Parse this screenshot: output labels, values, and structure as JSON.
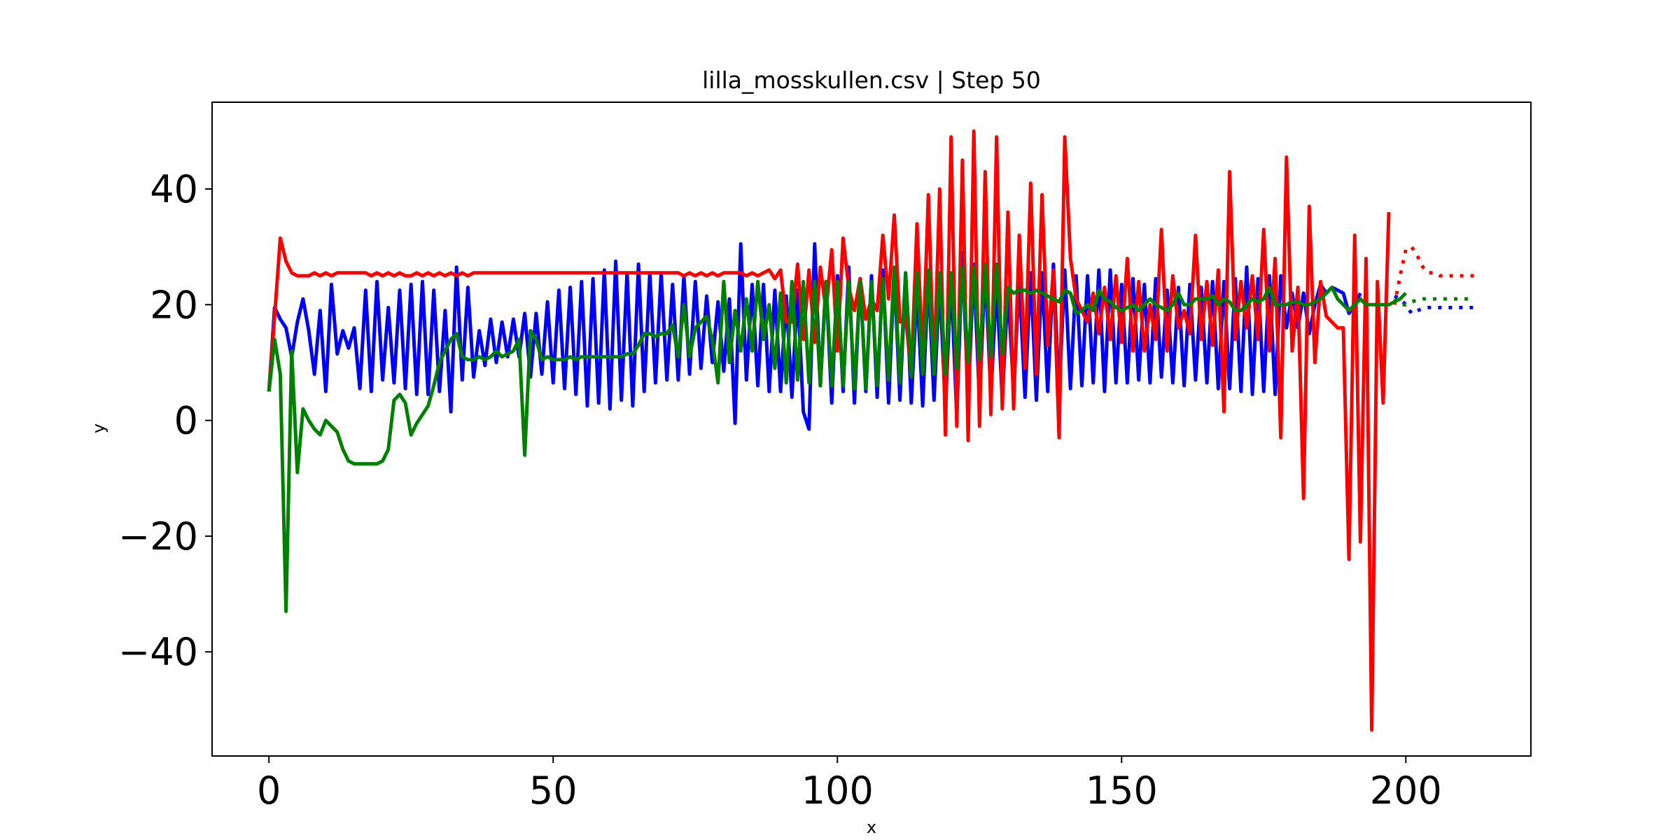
{
  "chart_data": {
    "type": "line",
    "title": "lilla_mosskullen.csv | Step 50",
    "xlabel": "x",
    "ylabel": "y",
    "xlim": [
      -10,
      222
    ],
    "ylim": [
      -58,
      55
    ],
    "xticks": [
      0,
      50,
      100,
      150,
      200
    ],
    "yticks": [
      -40,
      -20,
      0,
      20,
      40
    ],
    "xtick_labels": [
      "0",
      "50",
      "100",
      "150",
      "200"
    ],
    "ytick_labels": [
      "−40",
      "−20",
      "0",
      "20",
      "40"
    ],
    "legend": "none",
    "grid": false,
    "colors": {
      "blue": "#0000ff",
      "red": "#ff0000",
      "green": "#008000"
    },
    "series": [
      {
        "color": "blue",
        "x_start": 0,
        "values": [
          5,
          19.5,
          17.5,
          16,
          11,
          17,
          21,
          15.5,
          8,
          19,
          5,
          23.5,
          11.5,
          15.5,
          12.5,
          16,
          5.5,
          22.5,
          5,
          24,
          7,
          19.5,
          6.5,
          22.5,
          5.5,
          23.5,
          4.5,
          24,
          4.5,
          22.5,
          5,
          19,
          1.5,
          26.5,
          7,
          23,
          7.5,
          15.5,
          9.5,
          17.5,
          10,
          17,
          11,
          17.5,
          11,
          18.5,
          7.5,
          18.5,
          8,
          20.5,
          6.5,
          22.5,
          5.5,
          23,
          4.5,
          24,
          2.5,
          24.5,
          3,
          26,
          2,
          27.5,
          3.5,
          25.5,
          2.5,
          27,
          5,
          25.5,
          6.5,
          25.5,
          7,
          23.5,
          7,
          25,
          8,
          24,
          9,
          21.5,
          10,
          20.5,
          8.5,
          21,
          -0.5,
          30.5,
          7,
          23.5,
          6,
          23.5,
          5,
          22.5,
          5,
          21.5,
          4,
          22.5,
          1.5,
          -1.5,
          30.5,
          6,
          24,
          3,
          25,
          5,
          26.5,
          3,
          24.5,
          5,
          25,
          4,
          26,
          3,
          26,
          3.5,
          25.5,
          3,
          23,
          2.5,
          25,
          3.5,
          24,
          2,
          25,
          0.5,
          29,
          3.5,
          27,
          3,
          27,
          4,
          24,
          3.5,
          23,
          5,
          24.5,
          4,
          25.5,
          3.5,
          25.5,
          5,
          27,
          4.5,
          26,
          5.5,
          25,
          6,
          25,
          6.5,
          26,
          5,
          26,
          6.5,
          23.5,
          6.5,
          24.5,
          7,
          23.5,
          6.5,
          24.5,
          7.5,
          22.5,
          6.5,
          23,
          6,
          23.5,
          7,
          23,
          6.5,
          24,
          5.5,
          24,
          5.5,
          24.5,
          5,
          26.5,
          4.5,
          24.5,
          5,
          25,
          4.5,
          25,
          16,
          22,
          16,
          22,
          15,
          20,
          23.5,
          22,
          23,
          22.5,
          22,
          18.5,
          20,
          22
        ],
        "forecast": {
          "x_start": 198,
          "values": [
            21.5,
            21,
            20,
            18.5,
            19,
            19.3,
            19.5,
            19.5,
            19.5,
            19.5,
            19.5,
            19.5,
            19.5,
            19.5,
            19.5
          ]
        }
      },
      {
        "color": "red",
        "x_start": 0,
        "values": [
          5,
          18,
          31.5,
          27.5,
          25.5,
          25,
          25,
          25,
          25.5,
          25,
          25.5,
          25,
          25.5,
          25.5,
          25.5,
          25.5,
          25.5,
          25.5,
          25,
          25.5,
          25,
          25.5,
          25,
          25.5,
          25,
          25,
          25.5,
          25,
          25.5,
          25,
          25.5,
          25,
          25.5,
          25,
          25.5,
          25,
          25.5,
          25.5,
          25.5,
          25.5,
          25.5,
          25.5,
          25.5,
          25.5,
          25.5,
          25.5,
          25.5,
          25.5,
          25.5,
          25.5,
          25.5,
          25.5,
          25.5,
          25.5,
          25.5,
          25.5,
          25.5,
          25.5,
          25.5,
          25.5,
          25.5,
          25.5,
          25.5,
          25.5,
          25.5,
          25.5,
          25.5,
          25.5,
          25.5,
          25.5,
          25.5,
          25.5,
          25.5,
          25,
          25.5,
          25,
          25.5,
          25,
          25.5,
          25,
          25.5,
          25.5,
          25.5,
          25.5,
          25,
          25.5,
          25,
          25.5,
          26,
          24.5,
          26,
          17,
          17,
          27,
          14,
          26,
          13.5,
          26.5,
          19,
          29.5,
          12,
          31.5,
          23,
          19,
          24.5,
          17.5,
          21,
          19,
          32,
          21,
          35.5,
          17,
          18,
          8,
          34,
          10,
          39,
          8,
          40,
          -2.5,
          49,
          -1,
          45,
          -3.5,
          50,
          -1,
          43,
          1,
          49,
          2,
          36,
          2,
          32,
          9,
          41,
          8,
          39,
          13,
          26,
          -3,
          49,
          28,
          21,
          19,
          17,
          22,
          15,
          23,
          14,
          25,
          13.5,
          28,
          12,
          24,
          12,
          20,
          14,
          33,
          12,
          25,
          16,
          19,
          15,
          32,
          14,
          24,
          13,
          26,
          1.5,
          43,
          14,
          24,
          16,
          25,
          14,
          33,
          12,
          28,
          -3,
          45.5,
          12,
          23,
          -13.5,
          37,
          10,
          24,
          18,
          17,
          16,
          16,
          -24,
          32,
          -21,
          28,
          -53.5,
          24,
          3,
          36
        ],
        "forecast": {
          "x_start": 198,
          "values": [
            20,
            25,
            29.5,
            30,
            28.5,
            26.5,
            25.5,
            25.5,
            25,
            25,
            25,
            25,
            25,
            25,
            25
          ]
        }
      },
      {
        "color": "green",
        "x_start": 0,
        "values": [
          5,
          14,
          8,
          -33,
          12,
          -9,
          2,
          0,
          -1.5,
          -2.5,
          0,
          -1,
          -2,
          -5,
          -7,
          -7.5,
          -7.5,
          -7.5,
          -7.5,
          -7.5,
          -7,
          -5,
          3.5,
          4.5,
          3,
          -2.5,
          -0.5,
          1,
          2.5,
          6,
          10,
          12,
          14,
          15,
          11,
          10.5,
          10.5,
          11,
          10.5,
          11,
          12,
          11,
          11.5,
          12,
          14,
          -6,
          15.5,
          14,
          10.5,
          11,
          10.5,
          10.5,
          10.5,
          11,
          10.5,
          11,
          11,
          11,
          11,
          11,
          11,
          11,
          11,
          11.5,
          11.5,
          13,
          15,
          15,
          14.5,
          15,
          15,
          16.5,
          11,
          20,
          11,
          16,
          17,
          18,
          14,
          6.5,
          24,
          10,
          19,
          12,
          21,
          12,
          24,
          14,
          20,
          9,
          22,
          6.5,
          24,
          7,
          24,
          6.5,
          24,
          6,
          24,
          6,
          24,
          6,
          24,
          5.5,
          24,
          5.5,
          24,
          6,
          24.5,
          7,
          26.5,
          6.5,
          25.5,
          7.5,
          25.5,
          8,
          26,
          8,
          25.5,
          8,
          25.5,
          9,
          26.5,
          10,
          26.5,
          10.5,
          27,
          11,
          27,
          11.5,
          23,
          22,
          22.5,
          22.5,
          22,
          22.5,
          22,
          21.5,
          21,
          20.5,
          22.5,
          22,
          18.5,
          19,
          20,
          19,
          22.5,
          21,
          20.5,
          19.5,
          19,
          19.5,
          20,
          19,
          20,
          21,
          20,
          19.5,
          19,
          20,
          22,
          20,
          20,
          21,
          21,
          21,
          21.5,
          20,
          21,
          20.5,
          19,
          19,
          20,
          21,
          20.5,
          21,
          23,
          20,
          20,
          20,
          20.5,
          20.5,
          20,
          20,
          20.5,
          21,
          22,
          23,
          21,
          20,
          19,
          20,
          21,
          20,
          20,
          20,
          20,
          20,
          20.5,
          21,
          22
        ],
        "forecast": {
          "x_start": 198,
          "values": [
            21,
            20,
            20,
            20.5,
            20.8,
            21,
            21,
            21,
            21,
            21,
            21,
            21,
            21,
            21,
            21
          ]
        }
      }
    ]
  }
}
